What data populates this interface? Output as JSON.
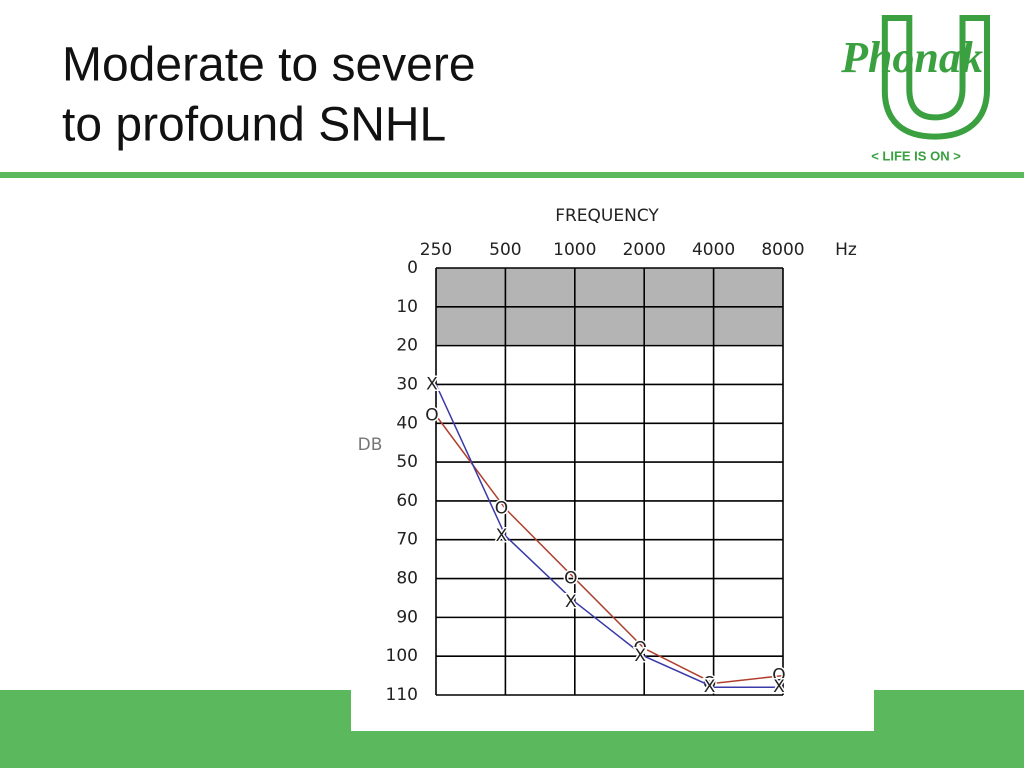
{
  "slide": {
    "title_lines": [
      "Moderate to severe",
      "to profound SNHL"
    ]
  },
  "logo": {
    "letter": "U",
    "brand": "Phonak",
    "tagline": "< LIFE IS ON >"
  },
  "chart_data": {
    "type": "line",
    "x_label": "FREQUENCY",
    "x_unit": "Hz",
    "y_label": "DB",
    "categories": [
      "250",
      "500",
      "1000",
      "2000",
      "4000",
      "8000"
    ],
    "series": [
      {
        "name": "O",
        "color": "#b0402e",
        "values": [
          38,
          62,
          80,
          98,
          107,
          105
        ]
      },
      {
        "name": "X",
        "color": "#3a3aa8",
        "values": [
          30,
          69,
          86,
          100,
          108,
          108
        ]
      }
    ],
    "ylim": [
      0,
      110
    ],
    "y_inverted": true,
    "yticks": [
      0,
      10,
      20,
      30,
      40,
      50,
      60,
      70,
      80,
      90,
      100,
      110
    ],
    "shaded_ylim": [
      0,
      20
    ],
    "shade_color": "#b4b4b4",
    "grid": true
  }
}
